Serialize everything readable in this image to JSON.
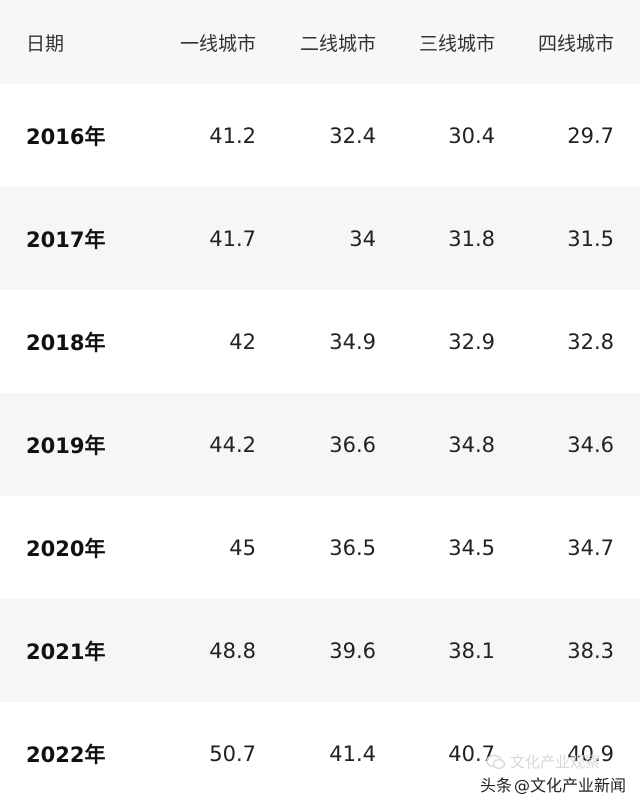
{
  "table": {
    "headers": [
      "日期",
      "一线城市",
      "二线城市",
      "三线城市",
      "四线城市"
    ],
    "rows": [
      {
        "date": "2016年",
        "values": [
          "41.2",
          "32.4",
          "30.4",
          "29.7"
        ]
      },
      {
        "date": "2017年",
        "values": [
          "41.7",
          "34",
          "31.8",
          "31.5"
        ]
      },
      {
        "date": "2018年",
        "values": [
          "42",
          "34.9",
          "32.9",
          "32.8"
        ]
      },
      {
        "date": "2019年",
        "values": [
          "44.2",
          "36.6",
          "34.8",
          "34.6"
        ]
      },
      {
        "date": "2020年",
        "values": [
          "45",
          "36.5",
          "34.5",
          "34.7"
        ]
      },
      {
        "date": "2021年",
        "values": [
          "48.8",
          "39.6",
          "38.1",
          "38.3"
        ]
      },
      {
        "date": "2022年",
        "values": [
          "50.7",
          "41.4",
          "40.7",
          "40.9"
        ]
      }
    ]
  },
  "watermark": {
    "prefix": "头条",
    "handle": "@文化产业新闻",
    "faint_text": "文化产业观察"
  },
  "colors": {
    "header_bg": "#f7f7f7",
    "alt_row_bg": "#f6f6f6",
    "text": "#222222"
  }
}
